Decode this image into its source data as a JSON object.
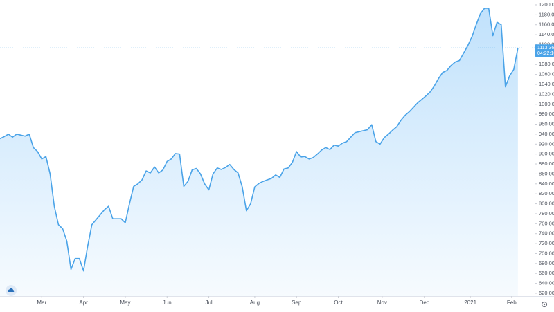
{
  "chart_data": {
    "type": "area",
    "values": [
      931,
      935,
      940,
      934,
      940,
      938,
      936,
      940,
      913,
      905,
      890,
      895,
      860,
      795,
      758,
      750,
      725,
      668,
      690,
      690,
      665,
      715,
      758,
      768,
      778,
      788,
      795,
      770,
      770,
      770,
      762,
      800,
      835,
      840,
      848,
      866,
      862,
      874,
      862,
      868,
      885,
      890,
      901,
      900,
      835,
      845,
      868,
      871,
      860,
      840,
      828,
      860,
      872,
      869,
      873,
      879,
      869,
      862,
      834,
      786,
      800,
      834,
      841,
      845,
      848,
      851,
      858,
      853,
      870,
      872,
      883,
      905,
      894,
      895,
      890,
      893,
      900,
      908,
      913,
      909,
      918,
      916,
      922,
      925,
      934,
      943,
      945,
      947,
      949,
      959,
      925,
      920,
      933,
      940,
      948,
      955,
      968,
      978,
      985,
      994,
      1003,
      1010,
      1017,
      1025,
      1037,
      1052,
      1064,
      1068,
      1078,
      1085,
      1088,
      1103,
      1118,
      1136,
      1160,
      1182,
      1193,
      1193,
      1138,
      1165,
      1160,
      1035,
      1057,
      1070,
      1113.36
    ],
    "color": "#4aa3e8",
    "xlim": [
      0,
      128
    ],
    "xticks": [
      {
        "value": 10,
        "label": "Mar"
      },
      {
        "value": 20,
        "label": "Apr"
      },
      {
        "value": 30,
        "label": "May"
      },
      {
        "value": 40,
        "label": "Jun"
      },
      {
        "value": 50,
        "label": "Jul"
      },
      {
        "value": 61,
        "label": "Aug"
      },
      {
        "value": 71,
        "label": "Sep"
      },
      {
        "value": 81,
        "label": "Oct"
      },
      {
        "value": 91.5,
        "label": "Nov"
      },
      {
        "value": 101.6,
        "label": "Dec"
      },
      {
        "value": 112.6,
        "label": "2021"
      },
      {
        "value": 122.5,
        "label": "Feb"
      }
    ],
    "ylim": [
      614.4,
      1209.7
    ],
    "yticks": [
      {
        "value": 620,
        "label": "620.00"
      },
      {
        "value": 640,
        "label": "640.00"
      },
      {
        "value": 660,
        "label": "660.00"
      },
      {
        "value": 680,
        "label": "680.00"
      },
      {
        "value": 700,
        "label": "700.00"
      },
      {
        "value": 720,
        "label": "720.00"
      },
      {
        "value": 740,
        "label": "740.00"
      },
      {
        "value": 760,
        "label": "760.00"
      },
      {
        "value": 780,
        "label": "780.00"
      },
      {
        "value": 800,
        "label": "800.00"
      },
      {
        "value": 820,
        "label": "820.00"
      },
      {
        "value": 840,
        "label": "840.00"
      },
      {
        "value": 860,
        "label": "860.00"
      },
      {
        "value": 880,
        "label": "880.00"
      },
      {
        "value": 900,
        "label": "900.00"
      },
      {
        "value": 920,
        "label": "920.00"
      },
      {
        "value": 940,
        "label": "940.00"
      },
      {
        "value": 960,
        "label": "960.00"
      },
      {
        "value": 980,
        "label": "980.00"
      },
      {
        "value": 1000,
        "label": "1000.00"
      },
      {
        "value": 1020,
        "label": "1020.00"
      },
      {
        "value": 1040,
        "label": "1040.00"
      },
      {
        "value": 1060,
        "label": "1060.00"
      },
      {
        "value": 1080,
        "label": "1080.00"
      },
      {
        "value": 1100,
        "label": "1100.00"
      },
      {
        "value": 1120,
        "label": "1120.00"
      },
      {
        "value": 1140,
        "label": "1140.00"
      },
      {
        "value": 1160,
        "label": "1160.00"
      },
      {
        "value": 1180,
        "label": "1180.00"
      },
      {
        "value": 1200,
        "label": "1200.00"
      }
    ],
    "grid": false,
    "last_price_label": "1113.36",
    "countdown": "04:22:10"
  }
}
